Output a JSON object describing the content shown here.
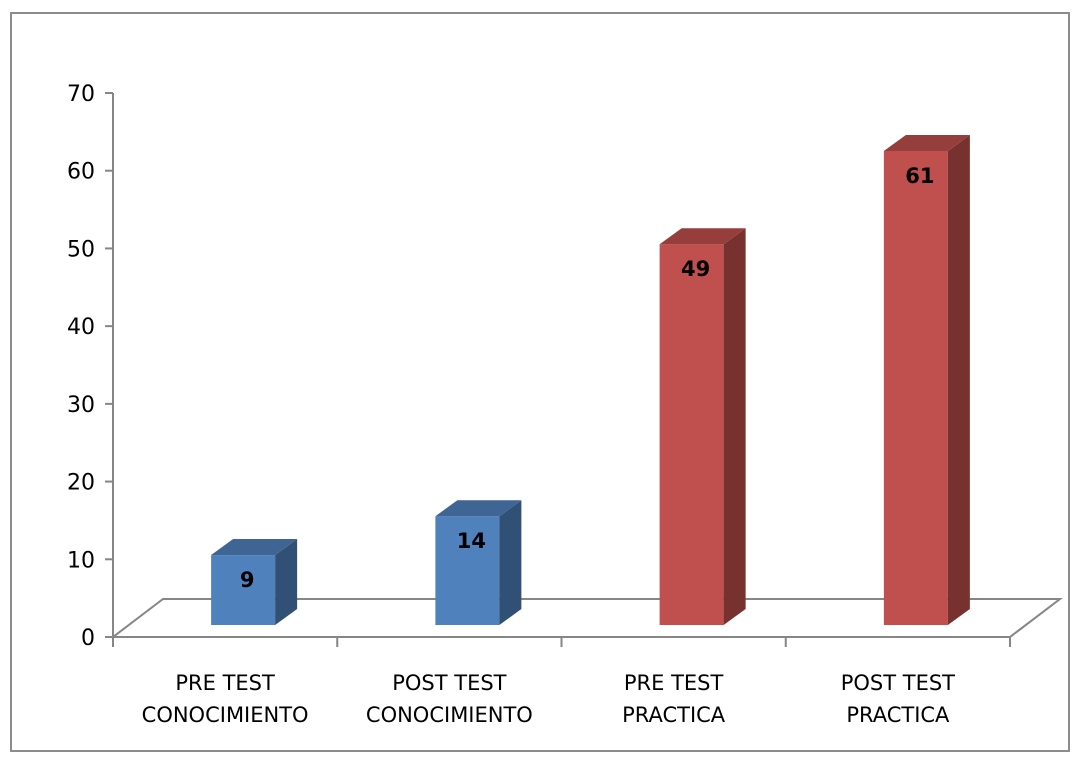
{
  "chart_data": {
    "type": "bar",
    "categories": [
      [
        "PRE TEST",
        "CONOCIMIENTO"
      ],
      [
        "POST TEST",
        "CONOCIMIENTO"
      ],
      [
        "PRE TEST",
        "PRACTICA"
      ],
      [
        "POST TEST",
        "PRACTICA"
      ]
    ],
    "values": [
      9,
      14,
      49,
      61
    ],
    "value_labels": [
      "9",
      "14",
      "49",
      "61"
    ],
    "bar_colors": [
      "#4f81bd",
      "#4f81bd",
      "#c0504d",
      "#c0504d"
    ],
    "ylim": [
      0,
      70
    ],
    "yticks": [
      "0",
      "10",
      "20",
      "30",
      "40",
      "50",
      "60",
      "70"
    ],
    "title": "",
    "xlabel": "",
    "ylabel": "",
    "style": "3d-column",
    "legend": "none",
    "grid": false
  }
}
